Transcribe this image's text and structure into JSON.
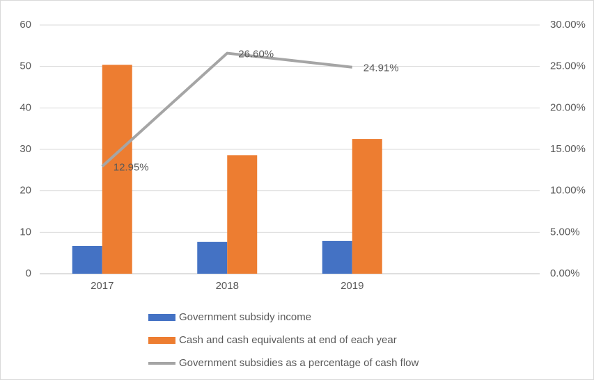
{
  "chart_data": {
    "type": "bar",
    "categories": [
      "2017",
      "2018",
      "2019",
      null
    ],
    "series": [
      {
        "name": "Government subsidy income",
        "color": "#4472c4",
        "values": [
          6.7,
          7.7,
          7.9,
          null
        ]
      },
      {
        "name": "Cash and cash equivalents at end of each year",
        "color": "#ed7d31",
        "values": [
          50.4,
          28.6,
          32.5,
          null
        ]
      },
      {
        "name": "Government subsidies as a percentage of cash flow",
        "type": "line",
        "axis": "y2",
        "color": "#a5a5a5",
        "values": [
          12.95,
          26.6,
          24.91,
          null
        ],
        "value_labels": [
          "12.95%",
          "26.60%",
          "24.91%",
          null
        ]
      }
    ],
    "ylim": [
      0,
      60
    ],
    "yticks": [
      0,
      10,
      20,
      30,
      40,
      50,
      60
    ],
    "y2lim": [
      0,
      30
    ],
    "y2ticks": [
      {
        "value": 0,
        "label": "0.00%"
      },
      {
        "value": 5,
        "label": "5.00%"
      },
      {
        "value": 10,
        "label": "10.00%"
      },
      {
        "value": 15,
        "label": "15.00%"
      },
      {
        "value": 20,
        "label": "20.00%"
      },
      {
        "value": 25,
        "label": "25.00%"
      },
      {
        "value": 30,
        "label": "30.00%"
      }
    ],
    "grid": true,
    "legend": "bottom"
  }
}
